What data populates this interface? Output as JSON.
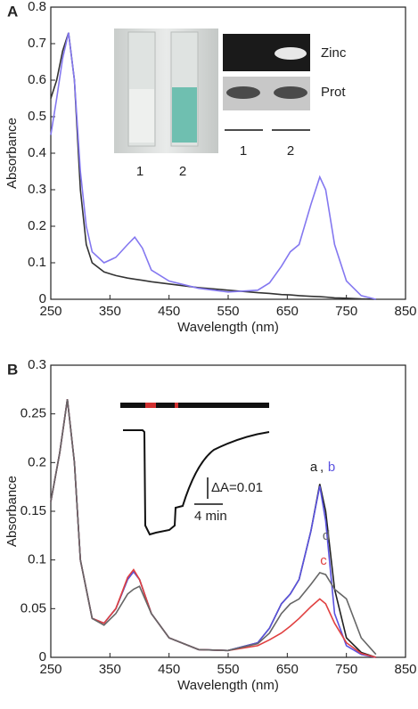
{
  "chart_data": [
    {
      "type": "line",
      "panel_label": "A",
      "xlabel": "Wavelength (nm)",
      "ylabel": "Absorbance",
      "xlim": [
        250,
        850
      ],
      "ylim": [
        0,
        0.8
      ],
      "xticks": [
        250,
        350,
        450,
        550,
        650,
        750,
        850
      ],
      "yticks": [
        0,
        0.1,
        0.2,
        0.3,
        0.4,
        0.5,
        0.6,
        0.7,
        0.8
      ],
      "x": [
        250,
        260,
        270,
        280,
        290,
        300,
        310,
        320,
        340,
        360,
        380,
        392,
        405,
        420,
        450,
        500,
        550,
        600,
        620,
        640,
        655,
        670,
        690,
        705,
        715,
        730,
        750,
        775,
        800
      ],
      "series": [
        {
          "color": "#333333",
          "values": [
            0.55,
            0.6,
            0.68,
            0.73,
            0.6,
            0.3,
            0.15,
            0.1,
            0.075,
            0.065,
            0.058,
            0.055,
            0.052,
            0.048,
            0.042,
            0.032,
            0.025,
            0.018,
            0.016,
            0.013,
            0.012,
            0.01,
            0.008,
            0.007,
            0.006,
            0.004,
            0.003,
            0.001,
            0
          ]
        },
        {
          "color": "#8478f0",
          "values": [
            0.45,
            0.55,
            0.66,
            0.73,
            0.6,
            0.35,
            0.2,
            0.13,
            0.1,
            0.115,
            0.15,
            0.17,
            0.14,
            0.08,
            0.05,
            0.03,
            0.02,
            0.025,
            0.045,
            0.09,
            0.13,
            0.15,
            0.26,
            0.335,
            0.3,
            0.15,
            0.05,
            0.01,
            0
          ]
        }
      ],
      "inset_labels": [
        "1",
        "2",
        "Zinc",
        "Prot",
        "1",
        "2"
      ]
    },
    {
      "type": "line",
      "panel_label": "B",
      "xlabel": "Wavelength (nm)",
      "ylabel": "Absorbance",
      "xlim": [
        250,
        850
      ],
      "ylim": [
        0,
        0.3
      ],
      "xticks": [
        250,
        350,
        450,
        550,
        650,
        750,
        850
      ],
      "yticks": [
        0,
        0.05,
        0.1,
        0.15,
        0.2,
        0.25,
        0.3
      ],
      "x": [
        250,
        265,
        278,
        290,
        300,
        320,
        340,
        360,
        380,
        390,
        400,
        420,
        450,
        500,
        550,
        600,
        620,
        640,
        655,
        670,
        690,
        705,
        715,
        730,
        750,
        775,
        800
      ],
      "label_separator": ",",
      "series": [
        {
          "name": "a",
          "color": "#222222",
          "values": [
            0.16,
            0.21,
            0.265,
            0.2,
            0.1,
            0.04,
            0.035,
            0.05,
            0.08,
            0.088,
            0.08,
            0.045,
            0.02,
            0.008,
            0.007,
            0.015,
            0.03,
            0.055,
            0.065,
            0.08,
            0.13,
            0.178,
            0.15,
            0.07,
            0.02,
            0.005,
            0
          ]
        },
        {
          "name": "b",
          "color": "#5a52e0",
          "values": [
            0.16,
            0.21,
            0.265,
            0.2,
            0.1,
            0.04,
            0.035,
            0.05,
            0.08,
            0.088,
            0.08,
            0.045,
            0.02,
            0.008,
            0.007,
            0.015,
            0.03,
            0.055,
            0.065,
            0.08,
            0.13,
            0.176,
            0.14,
            0.045,
            0.012,
            0.003,
            0
          ]
        },
        {
          "name": "c",
          "color": "#e04040",
          "values": [
            0.16,
            0.21,
            0.265,
            0.2,
            0.1,
            0.04,
            0.035,
            0.05,
            0.082,
            0.09,
            0.08,
            0.045,
            0.02,
            0.008,
            0.007,
            0.012,
            0.018,
            0.025,
            0.032,
            0.04,
            0.052,
            0.06,
            0.055,
            0.035,
            0.015,
            0.004,
            0
          ]
        },
        {
          "name": "d",
          "color": "#666666",
          "values": [
            0.16,
            0.21,
            0.265,
            0.2,
            0.1,
            0.04,
            0.033,
            0.045,
            0.065,
            0.07,
            0.073,
            0.045,
            0.02,
            0.008,
            0.007,
            0.014,
            0.025,
            0.045,
            0.055,
            0.06,
            0.075,
            0.087,
            0.085,
            0.07,
            0.06,
            0.02,
            0.003
          ]
        }
      ],
      "annotations": [
        "ΔA=0.01",
        "4 min"
      ]
    }
  ]
}
